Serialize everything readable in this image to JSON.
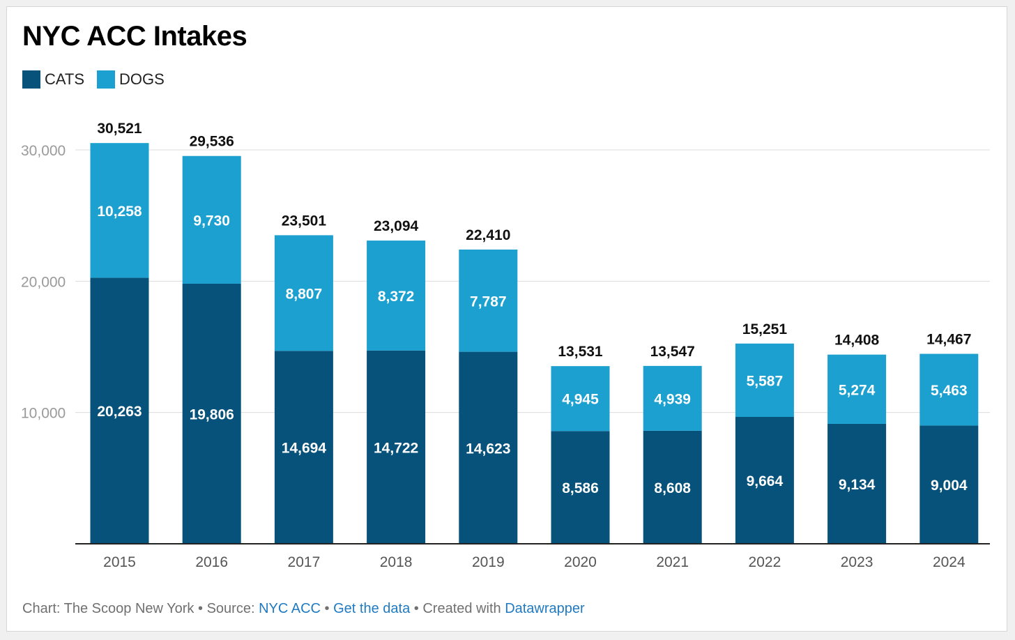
{
  "title": "NYC ACC Intakes",
  "legend": {
    "cats_label": "CATS",
    "dogs_label": "DOGS"
  },
  "colors": {
    "cats": "#07527a",
    "dogs": "#1ba0cf",
    "link": "#1f7ac2"
  },
  "footer": {
    "prefix": "Chart: The Scoop New York",
    "source_label": "Source:",
    "source_link": "NYC ACC",
    "data_link": "Get the data",
    "created_label": "Created with",
    "tool_link": "Datawrapper",
    "separator": "•"
  },
  "chart_data": {
    "type": "bar",
    "stacked": true,
    "categories": [
      "2015",
      "2016",
      "2017",
      "2018",
      "2019",
      "2020",
      "2021",
      "2022",
      "2023",
      "2024"
    ],
    "series": [
      {
        "name": "CATS",
        "values": [
          20263,
          19806,
          14694,
          14722,
          14623,
          8586,
          8608,
          9664,
          9134,
          9004
        ],
        "labels": [
          "20,263",
          "19,806",
          "14,694",
          "14,722",
          "14,623",
          "8,586",
          "8,608",
          "9,664",
          "9,134",
          "9,004"
        ]
      },
      {
        "name": "DOGS",
        "values": [
          10258,
          9730,
          8807,
          8372,
          7787,
          4945,
          4939,
          5587,
          5274,
          5463
        ],
        "labels": [
          "10,258",
          "9,730",
          "8,807",
          "8,372",
          "7,787",
          "4,945",
          "4,939",
          "5,587",
          "5,274",
          "5,463"
        ]
      }
    ],
    "totals": [
      "30,521",
      "29,536",
      "23,501",
      "23,094",
      "22,410",
      "13,531",
      "13,547",
      "15,251",
      "14,408",
      "14,467"
    ],
    "y_ticks": [
      {
        "value": 10000,
        "label": "10,000"
      },
      {
        "value": 20000,
        "label": "20,000"
      },
      {
        "value": 30000,
        "label": "30,000"
      }
    ],
    "ylim": [
      0,
      30000
    ],
    "grid": true,
    "legend_position": "top-left"
  }
}
